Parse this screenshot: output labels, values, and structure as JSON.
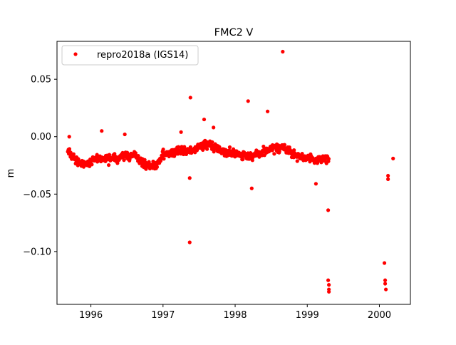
{
  "chart_data": {
    "type": "scatter",
    "title": "FMC2 V",
    "xlabel": "",
    "ylabel": "m",
    "xlim": [
      1995.53,
      2000.43
    ],
    "ylim": [
      -0.146,
      0.083
    ],
    "x_ticks": [
      {
        "value": 1996,
        "label": "1996"
      },
      {
        "value": 1997,
        "label": "1997"
      },
      {
        "value": 1998,
        "label": "1998"
      },
      {
        "value": 1999,
        "label": "1999"
      },
      {
        "value": 2000,
        "label": "2000"
      }
    ],
    "y_ticks": [
      {
        "value": 0.05,
        "label": "0.05"
      },
      {
        "value": 0.0,
        "label": "0.00"
      },
      {
        "value": -0.05,
        "label": "−0.05"
      },
      {
        "value": -0.1,
        "label": "−0.10"
      }
    ],
    "grid": false,
    "legend": {
      "position": "top-left",
      "entries": [
        "repro2018a (IGS14)"
      ]
    },
    "colors": {
      "series": "#ff0000"
    },
    "series": [
      {
        "name": "repro2018a (IGS14)",
        "marker": "dot",
        "trend": [
          [
            1995.68,
            -0.012
          ],
          [
            1995.8,
            -0.022
          ],
          [
            1995.95,
            -0.024
          ],
          [
            1996.05,
            -0.018
          ],
          [
            1996.25,
            -0.02
          ],
          [
            1996.45,
            -0.017
          ],
          [
            1996.6,
            -0.016
          ],
          [
            1996.75,
            -0.024
          ],
          [
            1996.9,
            -0.026
          ],
          [
            1997.0,
            -0.016
          ],
          [
            1997.2,
            -0.012
          ],
          [
            1997.4,
            -0.013
          ],
          [
            1997.55,
            -0.006
          ],
          [
            1997.7,
            -0.008
          ],
          [
            1997.85,
            -0.013
          ],
          [
            1998.0,
            -0.015
          ],
          [
            1998.2,
            -0.017
          ],
          [
            1998.35,
            -0.015
          ],
          [
            1998.5,
            -0.01
          ],
          [
            1998.65,
            -0.009
          ],
          [
            1998.8,
            -0.015
          ],
          [
            1998.95,
            -0.018
          ],
          [
            1999.1,
            -0.02
          ],
          [
            1999.3,
            -0.019
          ]
        ],
        "outliers": [
          [
            1995.7,
            0.0
          ],
          [
            1996.15,
            0.005
          ],
          [
            1996.47,
            0.002
          ],
          [
            1997.25,
            0.004
          ],
          [
            1997.38,
            0.034
          ],
          [
            1997.37,
            -0.036
          ],
          [
            1997.37,
            -0.092
          ],
          [
            1997.57,
            0.015
          ],
          [
            1997.7,
            0.008
          ],
          [
            1998.18,
            0.031
          ],
          [
            1998.23,
            -0.045
          ],
          [
            1998.45,
            0.022
          ],
          [
            1998.66,
            0.074
          ],
          [
            1999.12,
            -0.041
          ],
          [
            1999.29,
            -0.064
          ],
          [
            1999.29,
            -0.125
          ],
          [
            1999.3,
            -0.129
          ],
          [
            1999.3,
            -0.133
          ],
          [
            1999.3,
            -0.135
          ],
          [
            2000.07,
            -0.11
          ],
          [
            2000.08,
            -0.125
          ],
          [
            2000.08,
            -0.128
          ],
          [
            2000.09,
            -0.133
          ],
          [
            2000.12,
            -0.034
          ],
          [
            2000.12,
            -0.037
          ],
          [
            2000.19,
            -0.019
          ]
        ]
      }
    ]
  }
}
